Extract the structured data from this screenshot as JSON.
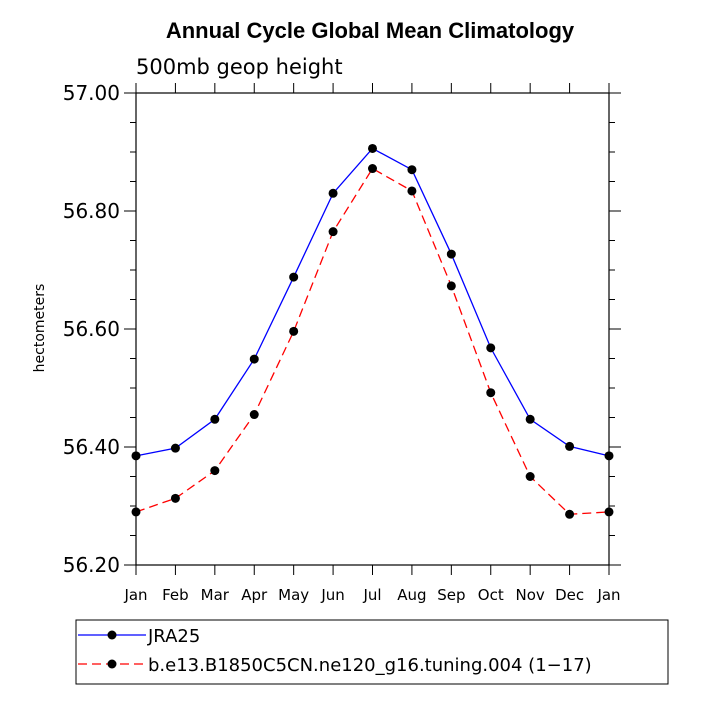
{
  "chart_data": {
    "type": "line",
    "title": "Annual Cycle Global Mean Climatology",
    "subtitle": "500mb geop height",
    "xlabel": "",
    "ylabel": "hectometers",
    "categories": [
      "Jan",
      "Feb",
      "Mar",
      "Apr",
      "May",
      "Jun",
      "Jul",
      "Aug",
      "Sep",
      "Oct",
      "Nov",
      "Dec",
      "Jan"
    ],
    "ylim": [
      56.2,
      57.0
    ],
    "yticks": [
      "56.20",
      "56.40",
      "56.60",
      "56.80",
      "57.00"
    ],
    "grid": false,
    "legend_position": "bottom-left",
    "series": [
      {
        "name": "JRA25",
        "color": "#0000ff",
        "dash": "solid",
        "marker": "filled-circle",
        "values": [
          56.385,
          56.398,
          56.447,
          56.549,
          56.688,
          56.83,
          56.906,
          56.87,
          56.727,
          56.568,
          56.447,
          56.401,
          56.385
        ]
      },
      {
        "name": "b.e13.B1850C5CN.ne120_g16.tuning.004 (1−17)",
        "color": "#ff0000",
        "dash": "dashed",
        "marker": "filled-circle",
        "values": [
          56.29,
          56.313,
          56.36,
          56.455,
          56.596,
          56.765,
          56.872,
          56.834,
          56.673,
          56.492,
          56.35,
          56.286,
          56.29
        ]
      }
    ]
  }
}
